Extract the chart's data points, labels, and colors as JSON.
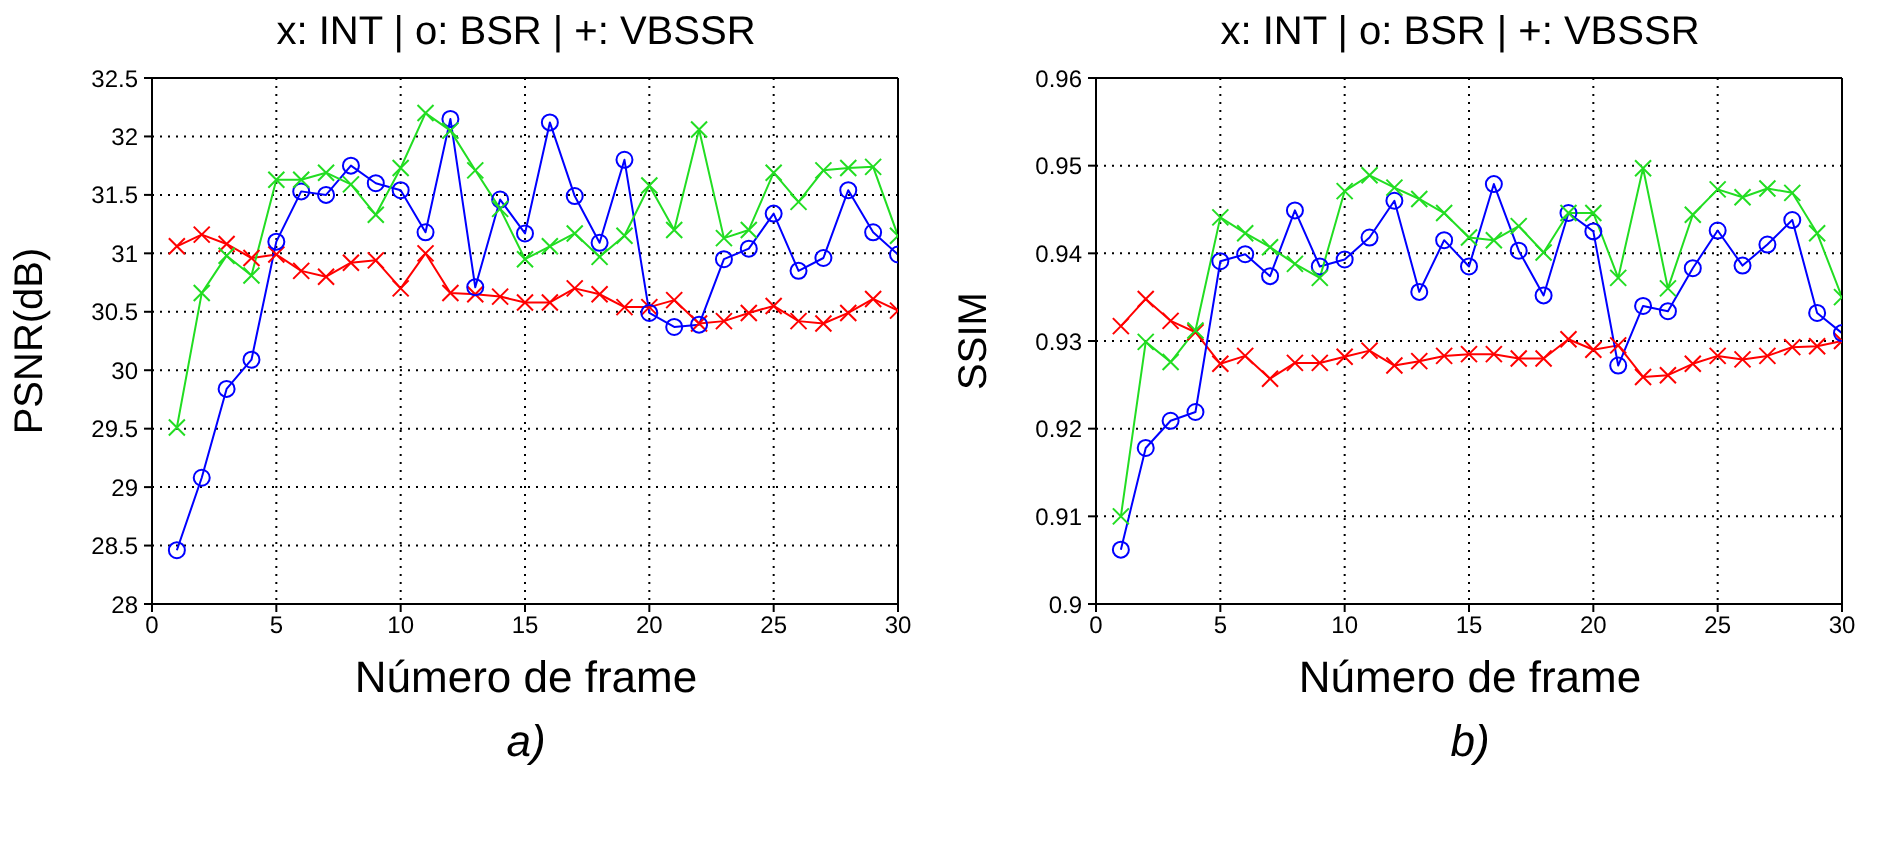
{
  "chart_data": [
    {
      "type": "line",
      "title": "x: INT | o: BSR | +: VBSSR",
      "xlabel": "Número de frame",
      "ylabel": "PSNR(dB)",
      "annotations": [
        "a)"
      ],
      "x": [
        1,
        2,
        3,
        4,
        5,
        6,
        7,
        8,
        9,
        10,
        11,
        12,
        13,
        14,
        15,
        16,
        17,
        18,
        19,
        20,
        21,
        22,
        23,
        24,
        25,
        26,
        27,
        28,
        29,
        30
      ],
      "series": [
        {
          "color": "#ff0000",
          "marker": "cross",
          "values": [
            31.06,
            31.16,
            31.08,
            30.96,
            30.99,
            30.85,
            30.8,
            30.92,
            30.94,
            30.7,
            31.0,
            30.66,
            30.65,
            30.63,
            30.58,
            30.58,
            30.7,
            30.65,
            30.54,
            30.54,
            30.6,
            30.4,
            30.42,
            30.49,
            30.55,
            30.42,
            30.4,
            30.49,
            30.61,
            30.51
          ]
        },
        {
          "color": "#0000ff",
          "marker": "circle",
          "values": [
            28.46,
            29.08,
            29.84,
            30.09,
            31.1,
            31.53,
            31.5,
            31.75,
            31.6,
            31.54,
            31.18,
            32.15,
            30.71,
            31.46,
            31.17,
            32.12,
            31.49,
            31.09,
            31.8,
            30.49,
            30.37,
            30.39,
            30.95,
            31.04,
            31.34,
            30.85,
            30.96,
            31.54,
            31.18,
            30.99
          ]
        },
        {
          "color": "#22dd22",
          "marker": "cross",
          "values": [
            29.51,
            30.66,
            30.98,
            30.81,
            31.63,
            31.63,
            31.69,
            31.59,
            31.33,
            31.73,
            32.2,
            32.05,
            31.71,
            31.38,
            30.95,
            31.06,
            31.17,
            30.97,
            31.15,
            31.58,
            31.2,
            32.06,
            31.13,
            31.2,
            31.69,
            31.44,
            31.71,
            31.73,
            31.74,
            31.15
          ]
        }
      ],
      "xlim": [
        0,
        30
      ],
      "xticks": [
        0,
        5,
        10,
        15,
        20,
        25,
        30
      ],
      "ylim": [
        28,
        32.5
      ],
      "yticks": [
        28,
        28.5,
        29,
        29.5,
        30,
        30.5,
        31,
        31.5,
        32,
        32.5
      ],
      "grid": true,
      "line_style": "solid"
    },
    {
      "type": "line",
      "title": "x: INT | o: BSR | +: VBSSR",
      "xlabel": "Número de frame",
      "ylabel": "SSIM",
      "annotations": [
        "b)"
      ],
      "x": [
        1,
        2,
        3,
        4,
        5,
        6,
        7,
        8,
        9,
        10,
        11,
        12,
        13,
        14,
        15,
        16,
        17,
        18,
        19,
        20,
        21,
        22,
        23,
        24,
        25,
        26,
        27,
        28,
        29,
        30
      ],
      "series": [
        {
          "color": "#ff0000",
          "marker": "cross",
          "values": [
            0.9317,
            0.9348,
            0.9323,
            0.931,
            0.9274,
            0.9283,
            0.9257,
            0.9275,
            0.9275,
            0.9282,
            0.9289,
            0.9272,
            0.9277,
            0.9283,
            0.9285,
            0.9285,
            0.928,
            0.928,
            0.9302,
            0.929,
            0.9295,
            0.9259,
            0.9261,
            0.9274,
            0.9283,
            0.9279,
            0.9283,
            0.9293,
            0.9294,
            0.93
          ]
        },
        {
          "color": "#0000ff",
          "marker": "circle",
          "values": [
            0.9062,
            0.9178,
            0.9209,
            0.9219,
            0.9391,
            0.9399,
            0.9374,
            0.9449,
            0.9385,
            0.9393,
            0.9418,
            0.946,
            0.9356,
            0.9415,
            0.9385,
            0.9479,
            0.9403,
            0.9352,
            0.9446,
            0.9425,
            0.9272,
            0.934,
            0.9334,
            0.9383,
            0.9426,
            0.9386,
            0.941,
            0.9438,
            0.9332,
            0.9309
          ]
        },
        {
          "color": "#22dd22",
          "marker": "cross",
          "values": [
            0.91,
            0.9299,
            0.9276,
            0.9312,
            0.9441,
            0.9423,
            0.9407,
            0.9388,
            0.9372,
            0.9471,
            0.9489,
            0.9475,
            0.9462,
            0.9446,
            0.9418,
            0.9415,
            0.9431,
            0.9401,
            0.9446,
            0.9446,
            0.9372,
            0.9497,
            0.936,
            0.9444,
            0.9473,
            0.9464,
            0.9474,
            0.9469,
            0.9423,
            0.935
          ]
        }
      ],
      "xlim": [
        0,
        30
      ],
      "xticks": [
        0,
        5,
        10,
        15,
        20,
        25,
        30
      ],
      "ylim": [
        0.9,
        0.96
      ],
      "yticks": [
        0.9,
        0.91,
        0.92,
        0.93,
        0.94,
        0.95,
        0.96
      ],
      "grid": true,
      "line_style": "solid"
    }
  ]
}
